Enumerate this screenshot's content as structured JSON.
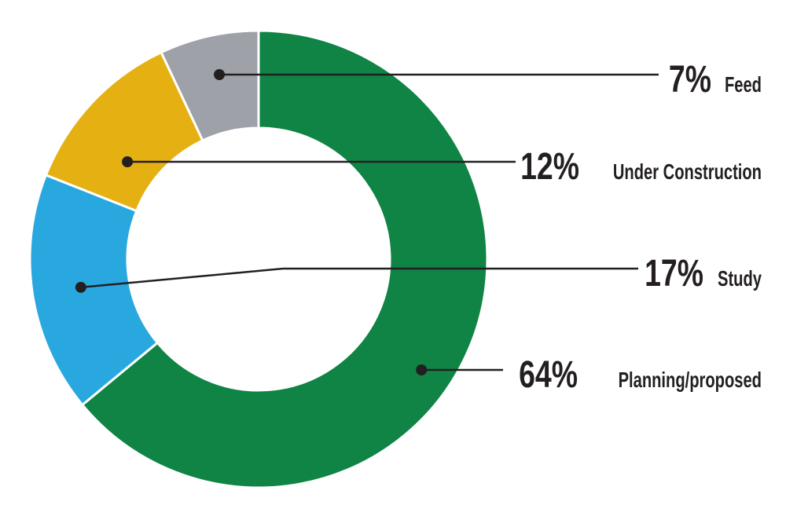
{
  "chart_data": {
    "type": "pie",
    "variant": "donut",
    "title": "",
    "legend": "none",
    "slices": [
      {
        "label": "Planning/proposed",
        "percent_label": "64%",
        "value": 64,
        "color": "#0f8444"
      },
      {
        "label": "Study",
        "percent_label": "17%",
        "value": 17,
        "color": "#29a8e0"
      },
      {
        "label": "Under Construction",
        "percent_label": "12%",
        "value": 12,
        "color": "#e5b012"
      },
      {
        "label": "Feed",
        "percent_label": "7%",
        "value": 7,
        "color": "#9ea1a8"
      }
    ],
    "callout_color": "#231f20",
    "separator_color": "#ffffff"
  }
}
